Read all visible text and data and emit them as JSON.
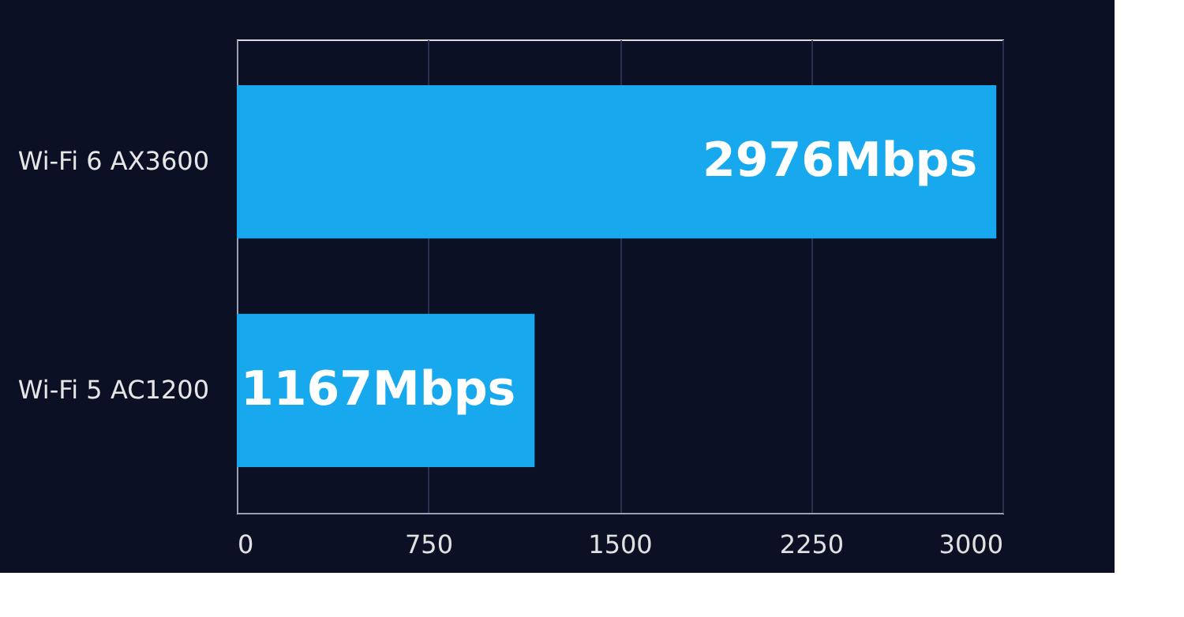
{
  "chart_data": {
    "type": "bar",
    "orientation": "horizontal",
    "categories": [
      "Wi-Fi 6 AX3600",
      "Wi-Fi 5 AC1200"
    ],
    "values": [
      2976,
      1167
    ],
    "value_labels": [
      "2976Mbps",
      "1167Mbps"
    ],
    "colors": [
      "#18a8ee",
      "#18a8ee"
    ],
    "xlim": [
      0,
      3000
    ],
    "xticks": [
      0,
      750,
      1500,
      2250,
      3000
    ],
    "grid": "x"
  }
}
